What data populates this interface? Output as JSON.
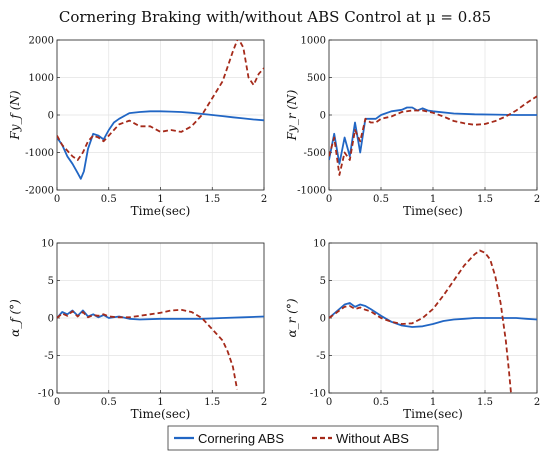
{
  "title": "Cornering Braking with/without ABS Control at μ = 0.85",
  "legend": {
    "items": [
      {
        "label": "Cornering ABS",
        "color": "#2166c4",
        "dash": "solid"
      },
      {
        "label": "Without ABS",
        "color": "#a52a1a",
        "dash": "dashed"
      }
    ]
  },
  "chart_data": [
    {
      "type": "line",
      "ylabel": "Fy_f (N)",
      "xlabel": "Time(sec)",
      "xlim": [
        0,
        2
      ],
      "ylim": [
        -2000,
        2000
      ],
      "xticks": [
        "0",
        "0.5",
        "1",
        "1.5",
        "2"
      ],
      "yticks": [
        "-2000",
        "-1000",
        "0",
        "1000",
        "2000"
      ],
      "grid": true,
      "series": [
        {
          "name": "Cornering ABS",
          "x": [
            0,
            0.05,
            0.1,
            0.15,
            0.2,
            0.23,
            0.26,
            0.3,
            0.35,
            0.4,
            0.45,
            0.5,
            0.55,
            0.6,
            0.7,
            0.8,
            0.9,
            1.0,
            1.1,
            1.2,
            1.3,
            1.4,
            1.5,
            1.6,
            1.7,
            1.8,
            1.9,
            2.0
          ],
          "y": [
            -600,
            -800,
            -1100,
            -1300,
            -1550,
            -1700,
            -1500,
            -900,
            -500,
            -550,
            -650,
            -400,
            -200,
            -100,
            50,
            80,
            100,
            100,
            90,
            80,
            60,
            30,
            0,
            -30,
            -60,
            -90,
            -120,
            -140
          ]
        },
        {
          "name": "Without ABS",
          "x": [
            0,
            0.05,
            0.1,
            0.15,
            0.2,
            0.25,
            0.3,
            0.35,
            0.4,
            0.45,
            0.5,
            0.55,
            0.6,
            0.7,
            0.8,
            0.9,
            1.0,
            1.1,
            1.2,
            1.3,
            1.4,
            1.5,
            1.6,
            1.65,
            1.7,
            1.75,
            1.8,
            1.85,
            1.9,
            1.95,
            2.0
          ],
          "y": [
            -550,
            -800,
            -950,
            -1100,
            -1200,
            -1000,
            -700,
            -550,
            -600,
            -700,
            -550,
            -400,
            -250,
            -150,
            -300,
            -300,
            -450,
            -400,
            -450,
            -300,
            0,
            450,
            900,
            1300,
            1700,
            2050,
            1800,
            1000,
            800,
            1100,
            1250
          ]
        }
      ]
    },
    {
      "type": "line",
      "ylabel": "Fy_r (N)",
      "xlabel": "Time(sec)",
      "xlim": [
        0,
        2
      ],
      "ylim": [
        -1000,
        1000
      ],
      "xticks": [
        "0",
        "0.5",
        "1",
        "1.5",
        "2"
      ],
      "yticks": [
        "-1000",
        "-500",
        "0",
        "500",
        "1000"
      ],
      "grid": true,
      "series": [
        {
          "name": "Cornering ABS",
          "x": [
            0,
            0.05,
            0.1,
            0.15,
            0.2,
            0.25,
            0.3,
            0.35,
            0.4,
            0.45,
            0.5,
            0.6,
            0.7,
            0.75,
            0.8,
            0.85,
            0.9,
            0.95,
            1.0,
            1.2,
            1.4,
            1.6,
            1.8,
            2.0
          ],
          "y": [
            -600,
            -250,
            -650,
            -300,
            -550,
            -100,
            -500,
            -50,
            -50,
            -50,
            0,
            50,
            70,
            100,
            100,
            60,
            90,
            60,
            50,
            20,
            10,
            5,
            0,
            0
          ]
        },
        {
          "name": "Without ABS",
          "x": [
            0,
            0.05,
            0.1,
            0.15,
            0.2,
            0.25,
            0.3,
            0.35,
            0.4,
            0.45,
            0.5,
            0.6,
            0.7,
            0.8,
            0.9,
            1.0,
            1.1,
            1.2,
            1.3,
            1.4,
            1.5,
            1.6,
            1.7,
            1.8,
            1.9,
            2.0
          ],
          "y": [
            -550,
            -300,
            -800,
            -500,
            -600,
            -200,
            -350,
            -50,
            -100,
            -100,
            -50,
            -20,
            40,
            60,
            60,
            30,
            -20,
            -80,
            -110,
            -130,
            -120,
            -80,
            -20,
            60,
            160,
            250
          ]
        }
      ]
    },
    {
      "type": "line",
      "ylabel": "α_f (°)",
      "xlabel": "Time(sec)",
      "xlim": [
        0,
        2
      ],
      "ylim": [
        -10,
        10
      ],
      "xticks": [
        "0",
        "0.5",
        "1",
        "1.5",
        "2"
      ],
      "yticks": [
        "-10",
        "-5",
        "0",
        "5",
        "10"
      ],
      "grid": true,
      "series": [
        {
          "name": "Cornering ABS",
          "x": [
            0,
            0.05,
            0.1,
            0.15,
            0.2,
            0.25,
            0.3,
            0.35,
            0.4,
            0.45,
            0.5,
            0.6,
            0.7,
            0.8,
            1.0,
            1.2,
            1.4,
            1.6,
            1.8,
            2.0
          ],
          "y": [
            0,
            0.8,
            0.5,
            1.0,
            0.3,
            1.0,
            0.2,
            0.5,
            0.1,
            0.4,
            0,
            0.2,
            -0.1,
            -0.2,
            -0.1,
            -0.1,
            -0.1,
            0,
            0.1,
            0.2
          ]
        },
        {
          "name": "Without ABS",
          "x": [
            0,
            0.05,
            0.1,
            0.15,
            0.2,
            0.25,
            0.3,
            0.35,
            0.4,
            0.45,
            0.5,
            0.6,
            0.7,
            0.8,
            0.9,
            1.0,
            1.1,
            1.2,
            1.3,
            1.4,
            1.5,
            1.6,
            1.65,
            1.7,
            1.72,
            1.74
          ],
          "y": [
            0,
            0.6,
            0.3,
            0.9,
            0.2,
            0.8,
            0.1,
            0.4,
            0.3,
            0.5,
            0.2,
            0.1,
            0.1,
            0.3,
            0.5,
            0.7,
            1.0,
            1.1,
            0.8,
            0,
            -1.5,
            -3,
            -4.5,
            -6.5,
            -8,
            -9.5
          ]
        }
      ]
    },
    {
      "type": "line",
      "ylabel": "α_r (°)",
      "xlabel": "Time(sec)",
      "xlim": [
        0,
        2
      ],
      "ylim": [
        -10,
        10
      ],
      "xticks": [
        "0",
        "0.5",
        "1",
        "1.5",
        "2"
      ],
      "yticks": [
        "-10",
        "-5",
        "0",
        "5",
        "10"
      ],
      "grid": true,
      "series": [
        {
          "name": "Cornering ABS",
          "x": [
            0,
            0.05,
            0.1,
            0.15,
            0.2,
            0.25,
            0.3,
            0.35,
            0.4,
            0.5,
            0.6,
            0.7,
            0.8,
            0.9,
            1.0,
            1.1,
            1.2,
            1.3,
            1.4,
            1.5,
            1.6,
            1.7,
            1.8,
            1.9,
            2.0
          ],
          "y": [
            0,
            0.6,
            1.2,
            1.8,
            2.0,
            1.5,
            1.8,
            1.6,
            1.2,
            0.3,
            -0.5,
            -1.0,
            -1.2,
            -1.1,
            -0.8,
            -0.4,
            -0.2,
            -0.1,
            0,
            0,
            0,
            0,
            0,
            -0.1,
            -0.2
          ]
        },
        {
          "name": "Without ABS",
          "x": [
            0,
            0.05,
            0.1,
            0.15,
            0.2,
            0.25,
            0.3,
            0.35,
            0.4,
            0.5,
            0.6,
            0.7,
            0.8,
            0.9,
            1.0,
            1.1,
            1.2,
            1.3,
            1.4,
            1.45,
            1.5,
            1.55,
            1.6,
            1.65,
            1.7,
            1.73,
            1.75
          ],
          "y": [
            0,
            0.5,
            1.0,
            1.5,
            1.6,
            1.2,
            1.4,
            1.1,
            0.9,
            0,
            -0.5,
            -0.8,
            -0.7,
            0,
            1.2,
            3.0,
            5.0,
            7.0,
            8.5,
            9.0,
            8.7,
            7.8,
            5.5,
            2.0,
            -3.0,
            -7.0,
            -10
          ]
        }
      ]
    }
  ]
}
